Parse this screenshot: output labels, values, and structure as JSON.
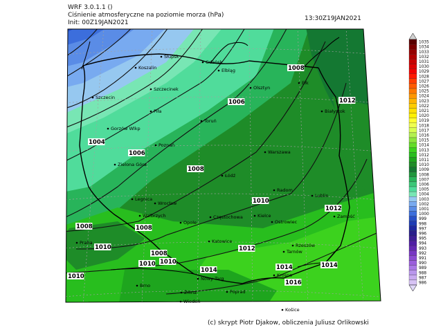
{
  "header": {
    "model": "WRF 3.0.1.1 ()",
    "field": "Ciśnienie atmosferyczne na poziomie morza (hPa)",
    "init": "Init: 00Z19JAN2021",
    "valid": "13:30Z19JAN2021"
  },
  "footer": "(c) skrypt Piotr Djakow, obliczenia Juliusz Orlikowski",
  "cities": [
    "Słupsk",
    "Gdańsk",
    "Koszalin",
    "Elbląg",
    "Szczecinek",
    "Szczecin",
    "Olsztyn",
    "Ełk",
    "Piła",
    "Toruń",
    "Białystok",
    "Gorzów Wlkp",
    "Poznań",
    "Warszawa",
    "Zielona Góra",
    "Łódź",
    "Radom",
    "Legnica",
    "Wrocław",
    "Lublin",
    "Wałbrzych",
    "Opole",
    "Częstochowa",
    "Kielce",
    "Zamość",
    "Ostrowiec",
    "Katowice",
    "Tarnów",
    "Rzeszów",
    "Praha",
    "Brno",
    "Nowy Targ",
    "Poprad",
    "Krosno",
    "Košice",
    "Žilina",
    "Wiedeń"
  ],
  "isobar_labels": [
    "1008",
    "1012",
    "1006",
    "1004",
    "1006",
    "1008",
    "1010",
    "1008",
    "1008",
    "1012",
    "1010",
    "1010",
    "1008",
    "1012",
    "1010",
    "1014",
    "1014",
    "1010",
    "1016",
    "1014"
  ],
  "colorbar": {
    "levels": [
      "1035",
      "1034",
      "1033",
      "1032",
      "1031",
      "1030",
      "1029",
      "1028",
      "1027",
      "1026",
      "1025",
      "1024",
      "1023",
      "1022",
      "1021",
      "1020",
      "1019",
      "1018",
      "1017",
      "1016",
      "1015",
      "1014",
      "1013",
      "1012",
      "1011",
      "1010",
      "1009",
      "1008",
      "1007",
      "1006",
      "1005",
      "1004",
      "1003",
      "1002",
      "1001",
      "1000",
      "999",
      "998",
      "997",
      "996",
      "995",
      "994",
      "993",
      "992",
      "991",
      "990",
      "989",
      "988",
      "987",
      "986"
    ],
    "colors": [
      "#5a0000",
      "#7a0000",
      "#960000",
      "#b00000",
      "#c80000",
      "#dc0000",
      "#f00000",
      "#ff1800",
      "#ff3c00",
      "#ff5a00",
      "#ff7800",
      "#ff9600",
      "#ffb400",
      "#ffcc00",
      "#ffe000",
      "#fff000",
      "#ffff30",
      "#f0ff50",
      "#d8ff50",
      "#b4f050",
      "#8ce63c",
      "#64dc28",
      "#3cd21e",
      "#28be1e",
      "#1ea51e",
      "#1e8c28",
      "#147832",
      "#1e963c",
      "#28b45a",
      "#3cc878",
      "#50dc9b",
      "#78e6b4",
      "#96c8f0",
      "#78aaf0",
      "#5a8ce6",
      "#3c6edc",
      "#2850c8",
      "#1e3cb4",
      "#1e28a0",
      "#281e8c",
      "#3c1e96",
      "#501ea5",
      "#6428b4",
      "#7837c3",
      "#8c4bd2",
      "#9b5fdc",
      "#aa78e6",
      "#b996ec",
      "#c8aaf0",
      "#d7c3f5"
    ]
  }
}
